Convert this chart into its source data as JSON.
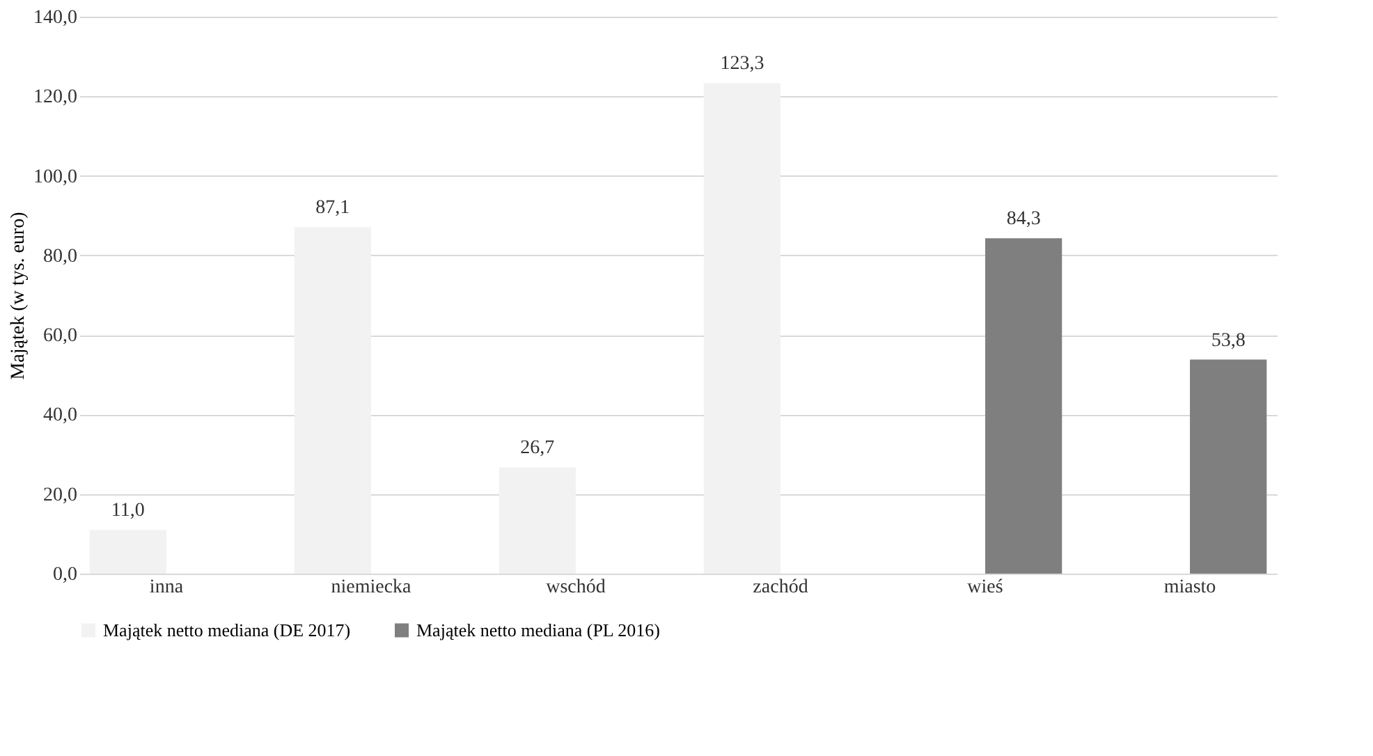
{
  "chart_data": {
    "type": "bar",
    "ylabel": "Majątek (w tys. euro)",
    "categories": [
      "inna",
      "niemiecka",
      "wschód",
      "zachód",
      "wieś",
      "miasto"
    ],
    "series": [
      {
        "name": "Majątek netto mediana (DE 2017)",
        "color": "#f2f2f2",
        "values": [
          11.0,
          87.1,
          26.7,
          123.3,
          null,
          null
        ],
        "value_labels": [
          "11,0",
          "87,1",
          "26,7",
          "123,3",
          null,
          null
        ]
      },
      {
        "name": "Majątek netto mediana (PL 2016)",
        "color": "#7f7f7f",
        "values": [
          null,
          null,
          null,
          null,
          84.3,
          53.8
        ],
        "value_labels": [
          null,
          null,
          null,
          null,
          "84,3",
          "53,8"
        ]
      }
    ],
    "ylim": [
      0,
      140
    ],
    "yticks": [
      {
        "value": 0,
        "label": "0,0"
      },
      {
        "value": 20,
        "label": "20,0"
      },
      {
        "value": 40,
        "label": "40,0"
      },
      {
        "value": 60,
        "label": "60,0"
      },
      {
        "value": 80,
        "label": "80,0"
      },
      {
        "value": 100,
        "label": "100,0"
      },
      {
        "value": 120,
        "label": "120,0"
      },
      {
        "value": 140,
        "label": "140,0"
      }
    ],
    "grid": "y",
    "legend": "bottom"
  }
}
